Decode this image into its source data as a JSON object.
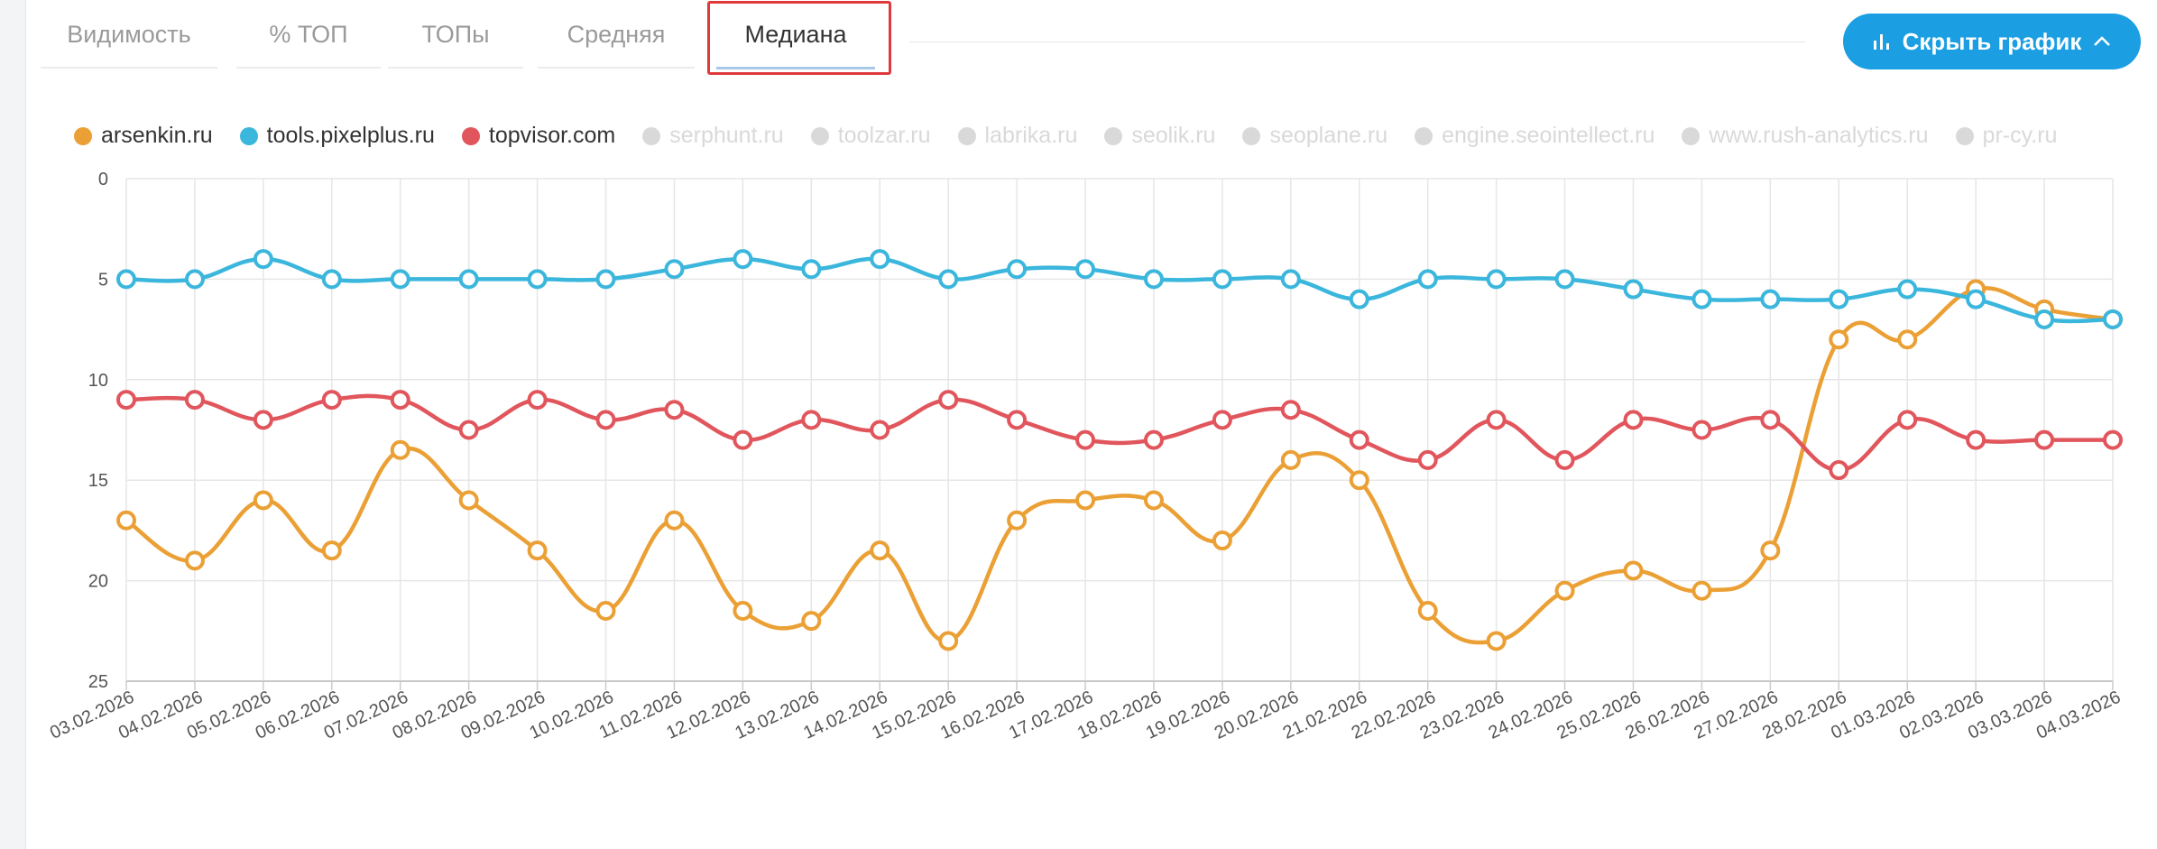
{
  "tabs": [
    "Видимость",
    "% ТОП",
    "ТОПы",
    "Средняя",
    "Медиана"
  ],
  "active_tab": 4,
  "button": "Скрыть график",
  "chart_data": {
    "type": "line",
    "categories": [
      "03.02.2026",
      "04.02.2026",
      "05.02.2026",
      "06.02.2026",
      "07.02.2026",
      "08.02.2026",
      "09.02.2026",
      "10.02.2026",
      "11.02.2026",
      "12.02.2026",
      "13.02.2026",
      "14.02.2026",
      "15.02.2026",
      "16.02.2026",
      "17.02.2026",
      "18.02.2026",
      "19.02.2026",
      "20.02.2026",
      "21.02.2026",
      "22.02.2026",
      "23.02.2026",
      "24.02.2026",
      "25.02.2026",
      "26.02.2026",
      "27.02.2026",
      "28.02.2026",
      "01.03.2026",
      "02.03.2026",
      "03.03.2026",
      "04.03.2026"
    ],
    "series": [
      {
        "name": "arsenkin.ru",
        "color": "#eba035",
        "values": [
          17,
          19,
          16,
          18.5,
          13.5,
          16,
          18.5,
          21.5,
          17,
          21.5,
          22,
          18.5,
          23,
          17,
          16,
          16,
          18,
          14,
          15,
          21.5,
          23,
          20.5,
          19.5,
          20.5,
          18.5,
          8,
          8,
          5.5,
          6.5,
          7
        ]
      },
      {
        "name": "tools.pixelplus.ru",
        "color": "#3bb6dc",
        "values": [
          5,
          5,
          4,
          5,
          5,
          5,
          5,
          5,
          4.5,
          4,
          4.5,
          4,
          5,
          4.5,
          4.5,
          5,
          5,
          5,
          6,
          5,
          5,
          5,
          5.5,
          6,
          6,
          6,
          5.5,
          6,
          7,
          7
        ]
      },
      {
        "name": "topvisor.com",
        "color": "#e1565c",
        "values": [
          11,
          11,
          12,
          11,
          11,
          12.5,
          11,
          12,
          11.5,
          13,
          12,
          12.5,
          11,
          12,
          13,
          13,
          12,
          11.5,
          13,
          14,
          12,
          14,
          12,
          12.5,
          12,
          14.5,
          12,
          13,
          13,
          13
        ]
      }
    ],
    "inactive_series": [
      "serphunt.ru",
      "toolzar.ru",
      "labrika.ru",
      "seolik.ru",
      "seoplane.ru",
      "engine.seointellect.ru",
      "www.rush-analytics.ru",
      "pr-cy.ru"
    ],
    "inactive_color": "#d9d9d9",
    "ylim": [
      0,
      25
    ],
    "y_inverted": true,
    "yticks": [
      0,
      5,
      10,
      15,
      20,
      25
    ],
    "grid": true
  }
}
